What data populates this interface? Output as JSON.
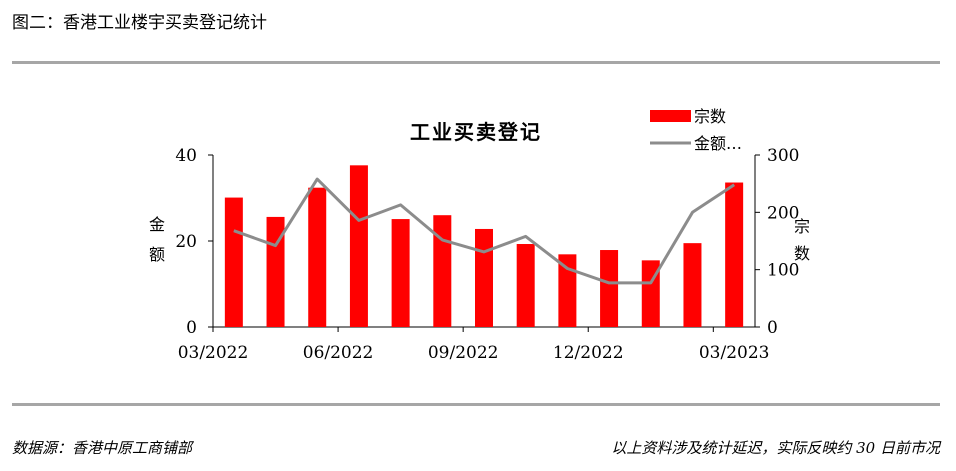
{
  "figure_caption": "图二：香港工业楼宇买卖登记统计",
  "source_note": "数据源：香港中原工商铺部",
  "footnote": "以上资料涉及统计延迟，实际反映约 30 日前市况",
  "colors": {
    "bars": "#ff0000",
    "line": "#8c8c8c",
    "rule": "#a6a6a6"
  },
  "chart_data": {
    "type": "bar",
    "title": "工业买卖登记",
    "categories": [
      "03/2022",
      "04/2022",
      "05/2022",
      "06/2022",
      "07/2022",
      "08/2022",
      "09/2022",
      "10/2022",
      "11/2022",
      "12/2022",
      "01/2023",
      "02/2023",
      "03/2023"
    ],
    "x_tick_labels": [
      "03/2022",
      "06/2022",
      "09/2022",
      "12/2022",
      "03/2023"
    ],
    "left_axis": {
      "label_chars": [
        "金",
        "额"
      ],
      "ylim": [
        0,
        40
      ],
      "ticks": [
        "0",
        "20",
        "40"
      ]
    },
    "right_axis": {
      "label_chars": [
        "宗",
        "数"
      ],
      "ylim": [
        0,
        300
      ],
      "ticks": [
        "0",
        "100",
        "200",
        "300"
      ]
    },
    "series": [
      {
        "name": "宗数",
        "type": "bar",
        "axis": "left",
        "values": [
          30.1,
          25.6,
          32.4,
          37.6,
          25.1,
          26.0,
          22.8,
          19.3,
          16.9,
          17.9,
          15.5,
          19.5,
          33.6
        ]
      },
      {
        "name": "金额…",
        "type": "line",
        "axis": "right",
        "values": [
          168,
          142,
          258,
          186,
          213,
          152,
          131,
          158,
          102,
          77,
          77,
          200,
          248
        ]
      }
    ],
    "legend": [
      "宗数",
      "金额…"
    ],
    "legend_position": "top-right",
    "grid": false
  }
}
